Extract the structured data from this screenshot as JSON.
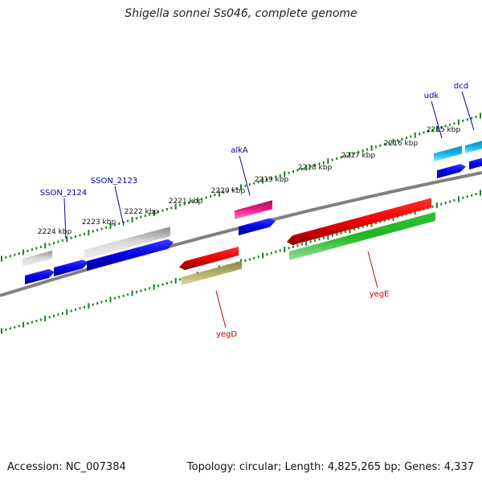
{
  "title": "Shigella sonnei Ss046, complete genome",
  "accession_label": "Accession: NC_007384",
  "genome_info": "Topology: circular; Length: 4,825,265 bp; Genes: 4,337",
  "colors": {
    "background": "#ffffff",
    "backbone": "#808080",
    "tick": "#1a7f1a",
    "label_forward": "#0000a0",
    "label_reverse": "#cc0000"
  },
  "scale_labels": [
    "2215 kbp",
    "2216 kbp",
    "2217 kbp",
    "2218 kbp",
    "2219 kbp",
    "2220 kbp",
    "2221 kbp",
    "2222 kbp",
    "2223 kbp",
    "2224 kbp"
  ],
  "gene_labels": [
    {
      "name": "dcd",
      "strand": "forward"
    },
    {
      "name": "udk",
      "strand": "forward"
    },
    {
      "name": "alkA",
      "strand": "forward"
    },
    {
      "name": "SSON_2123",
      "strand": "forward"
    },
    {
      "name": "SSON_2124",
      "strand": "forward"
    },
    {
      "name": "yegD",
      "strand": "reverse"
    },
    {
      "name": "yegE",
      "strand": "reverse"
    }
  ]
}
